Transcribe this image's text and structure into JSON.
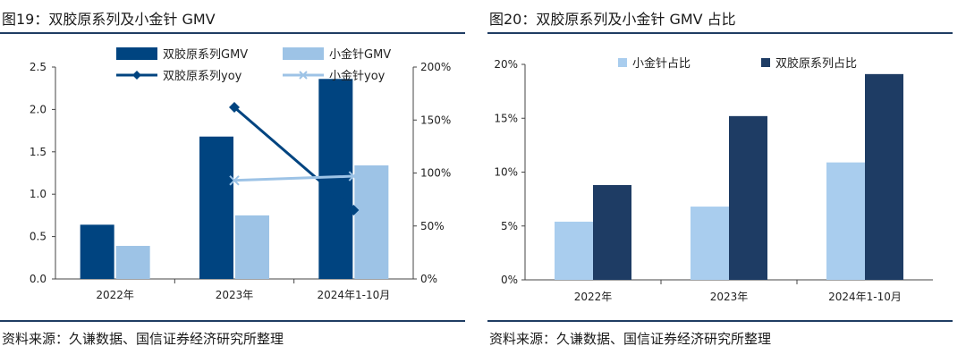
{
  "colors": {
    "dark": "#004480",
    "light": "#9DC3E6",
    "dark2": "#1E3C64",
    "light2": "#A9CDEE",
    "rule": "#1f3d63"
  },
  "left": {
    "title": "图19：双胶原系列及小金针 GMV",
    "source": "资料来源：久谦数据、国信证券经济研究所整理"
  },
  "right": {
    "title": "图20：双胶原系列及小金针 GMV 占比",
    "source": "资料来源：久谦数据、国信证券经济研究所整理"
  },
  "chart_data": [
    {
      "type": "bar",
      "combo": "bar+line, dual axis",
      "categories": [
        "2022年",
        "2023年",
        "2024年1-10月"
      ],
      "series": [
        {
          "name": "双胶原系列GMV",
          "kind": "bar",
          "axis": "left",
          "values": [
            0.64,
            1.68,
            2.36
          ]
        },
        {
          "name": "小金针GMV",
          "kind": "bar",
          "axis": "left",
          "values": [
            0.39,
            0.75,
            1.34
          ]
        },
        {
          "name": "双胶原系列yoy",
          "kind": "line",
          "axis": "right",
          "marker": "diamond",
          "values": [
            null,
            1.62,
            0.65
          ]
        },
        {
          "name": "小金针yoy",
          "kind": "line",
          "axis": "right",
          "marker": "x",
          "values": [
            null,
            0.93,
            0.97
          ]
        }
      ],
      "ylim": [
        0,
        2.5
      ],
      "yticks": [
        "0.0",
        "0.5",
        "1.0",
        "1.5",
        "2.0",
        "2.5"
      ],
      "y2lim": [
        0,
        2.0
      ],
      "y2ticks": [
        "0%",
        "50%",
        "100%",
        "150%",
        "200%"
      ],
      "legend": "top"
    },
    {
      "type": "bar",
      "categories": [
        "2022年",
        "2023年",
        "2024年1-10月"
      ],
      "series": [
        {
          "name": "小金针占比",
          "values": [
            0.054,
            0.068,
            0.109
          ]
        },
        {
          "name": "双胶原系列占比",
          "values": [
            0.088,
            0.152,
            0.191
          ]
        }
      ],
      "ylim": [
        0,
        0.2
      ],
      "yticks": [
        "0%",
        "5%",
        "10%",
        "15%",
        "20%"
      ],
      "legend": "top"
    }
  ]
}
